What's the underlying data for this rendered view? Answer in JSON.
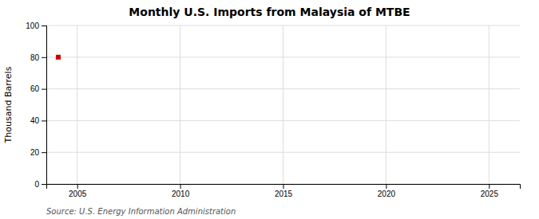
{
  "chart_data": {
    "type": "scatter",
    "title": "Monthly U.S. Imports from Malaysia of MTBE",
    "ylabel": "Thousand Barrels",
    "annotations": [
      "Source: U.S. Energy Information Administration"
    ],
    "x": [
      2004.08
    ],
    "values": [
      80
    ],
    "color": "#cc0000",
    "marker": "square",
    "xlim": [
      2003.5,
      2026.5
    ],
    "xticks": [
      2005,
      2010,
      2015,
      2020,
      2025
    ],
    "ylim": [
      0,
      100
    ],
    "yticks": [
      0,
      20,
      40,
      60,
      80,
      100
    ],
    "grid": true
  }
}
